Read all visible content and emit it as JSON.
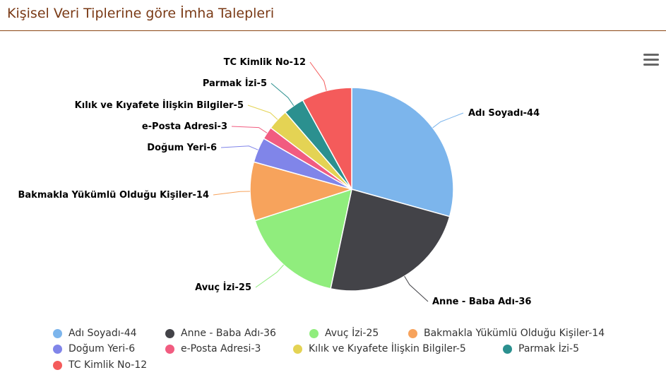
{
  "header": {
    "title": "Kişisel Veri Tiplerine göre İmha Talepleri"
  },
  "menu": {
    "icon": "hamburger-menu-icon"
  },
  "chart_data": {
    "type": "pie",
    "title": "",
    "slices": [
      {
        "label": "Adı Soyadı-44",
        "name": "Adı Soyadı",
        "value": 44,
        "color": "#7cb5ec"
      },
      {
        "label": "Anne - Baba Adı-36",
        "name": "Anne - Baba Adı",
        "value": 36,
        "color": "#434348"
      },
      {
        "label": "Avuç İzi-25",
        "name": "Avuç İzi",
        "value": 25,
        "color": "#90ed7d"
      },
      {
        "label": "Bakmakla Yükümlü Olduğu Kişiler-14",
        "name": "Bakmakla Yükümlü Olduğu Kişiler",
        "value": 14,
        "color": "#f7a35c"
      },
      {
        "label": "Doğum Yeri-6",
        "name": "Doğum Yeri",
        "value": 6,
        "color": "#8085e9"
      },
      {
        "label": "e-Posta Adresi-3",
        "name": "e-Posta Adresi",
        "value": 3,
        "color": "#f15c80"
      },
      {
        "label": "Kılık ve Kıyafete İlişkin Bilgiler-5",
        "name": "Kılık ve Kıyafete İlişkin Bilgiler",
        "value": 5,
        "color": "#e4d354"
      },
      {
        "label": "Parmak İzi-5",
        "name": "Parmak İzi",
        "value": 5,
        "color": "#2b908f"
      },
      {
        "label": "TC Kimlik No-12",
        "name": "TC Kimlik No",
        "value": 12,
        "color": "#f45b5b"
      }
    ],
    "legend_position": "bottom"
  }
}
